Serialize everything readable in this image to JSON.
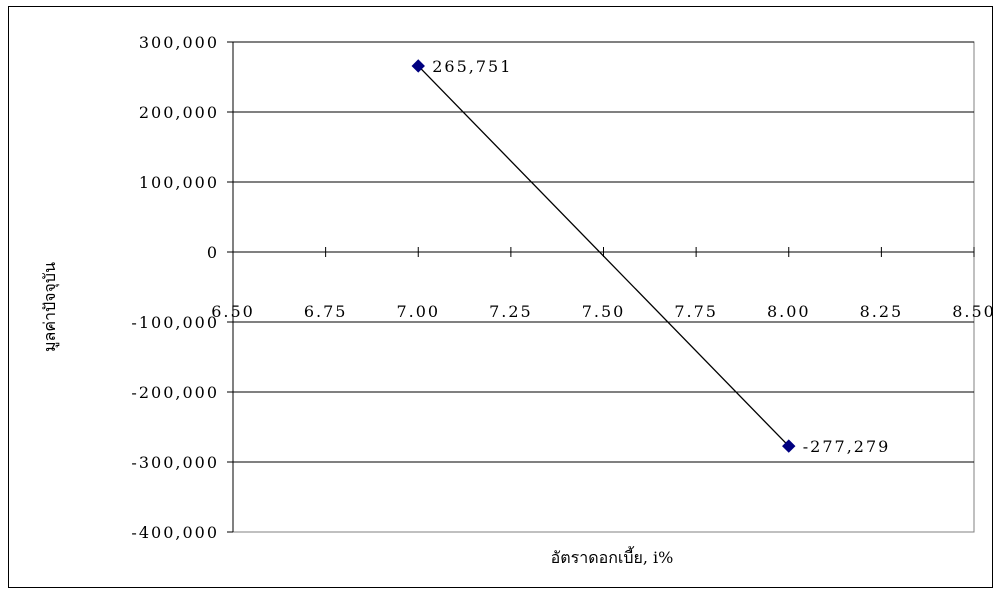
{
  "chart_data": {
    "type": "scatter",
    "title": "",
    "xlabel": "อัตราดอกเบี้ย, i%",
    "ylabel": "มูลค่าปัจจุบัน",
    "xlim": [
      6.5,
      8.5
    ],
    "ylim": [
      -400000,
      300000
    ],
    "x_ticks": [
      6.5,
      6.75,
      7.0,
      7.25,
      7.5,
      7.75,
      8.0,
      8.25,
      8.5
    ],
    "x_tick_labels": [
      "6.50",
      "6.75",
      "7.00",
      "7.25",
      "7.50",
      "7.75",
      "8.00",
      "8.25",
      "8.50"
    ],
    "y_ticks": [
      300000,
      200000,
      100000,
      0,
      -100000,
      -200000,
      -300000,
      -400000
    ],
    "y_tick_labels": [
      "300,000",
      "200,000",
      "100,000",
      "0",
      "-100,000",
      "-200,000",
      "-300,000",
      "-400,000"
    ],
    "grid": "horizontal",
    "series": [
      {
        "x": [
          7.0,
          8.0
        ],
        "y": [
          265751,
          -277279
        ],
        "data_labels": [
          "265,751",
          "-277,279"
        ],
        "marker": "diamond",
        "marker_color": "#000080",
        "line_color": "#000000"
      }
    ]
  }
}
